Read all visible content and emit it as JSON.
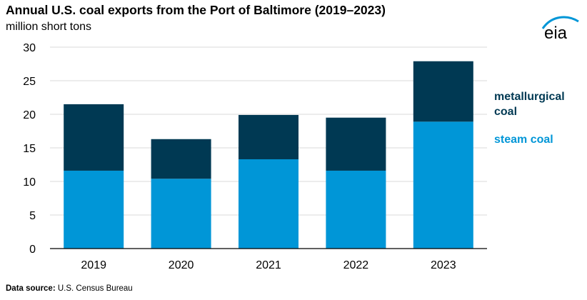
{
  "title": "Annual U.S. coal exports from the Port of Baltimore (2019–2023)",
  "subtitle": "million short tons",
  "logo_text": "eia",
  "source": {
    "label": "Data source:",
    "text": "U.S. Census Bureau"
  },
  "colors": {
    "steam": "#0096d7",
    "metallurgical": "#003953",
    "axis": "#000000",
    "grid": "#d9d9d9"
  },
  "chart_data": {
    "type": "bar",
    "stacked": true,
    "categories": [
      "2019",
      "2020",
      "2021",
      "2022",
      "2023"
    ],
    "series": [
      {
        "name": "steam coal",
        "values": [
          11.6,
          10.4,
          13.3,
          11.6,
          18.9
        ]
      },
      {
        "name": "metallurgical coal",
        "values": [
          9.9,
          5.9,
          6.6,
          7.9,
          9.0
        ]
      }
    ],
    "legend_labels": {
      "metallurgical": [
        "metallurgical",
        "coal"
      ],
      "steam": [
        "steam coal"
      ]
    },
    "ylim": [
      0,
      30
    ],
    "yticks": [
      0,
      5,
      10,
      15,
      20,
      25,
      30
    ],
    "grid": true,
    "legend": "right",
    "xlabel": "",
    "ylabel": "million short tons"
  }
}
